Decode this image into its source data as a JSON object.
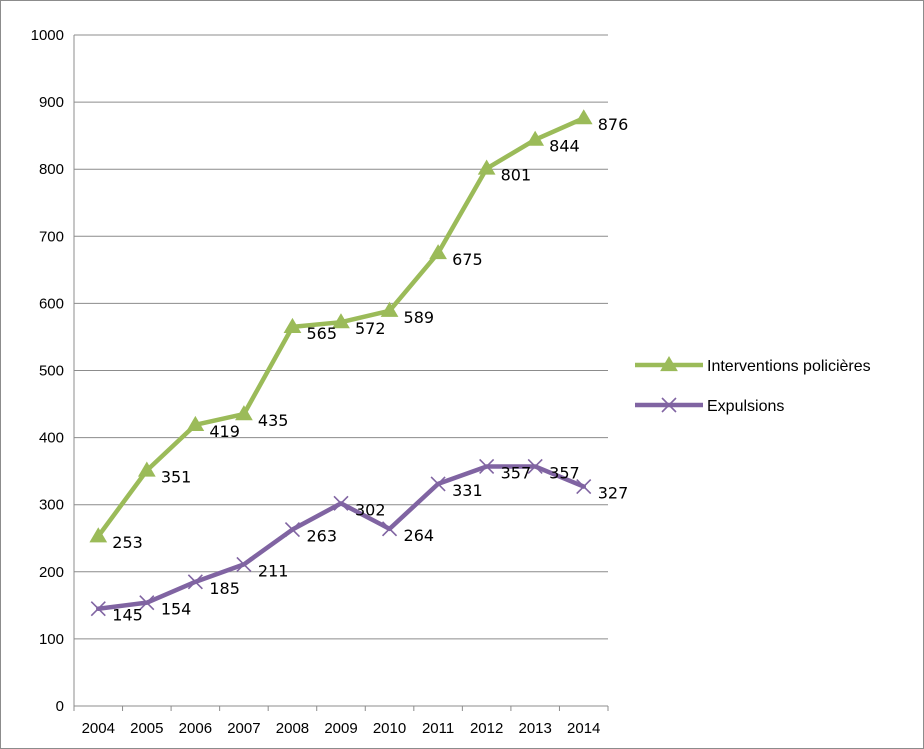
{
  "chart_data": {
    "type": "line",
    "title": "",
    "xlabel": "",
    "ylabel": "",
    "categories": [
      "2004",
      "2005",
      "2006",
      "2007",
      "2008",
      "2009",
      "2010",
      "2011",
      "2012",
      "2013",
      "2014"
    ],
    "ylim": [
      0,
      1000
    ],
    "yticks": [
      0,
      100,
      200,
      300,
      400,
      500,
      600,
      700,
      800,
      900,
      1000
    ],
    "grid": true,
    "legend_position": "right",
    "series": [
      {
        "name": "Interventions policières",
        "values": [
          253,
          351,
          419,
          435,
          565,
          572,
          589,
          675,
          801,
          844,
          876
        ],
        "color": "#9bbb59",
        "marker": "triangle"
      },
      {
        "name": "Expulsions",
        "values": [
          145,
          154,
          185,
          211,
          263,
          302,
          264,
          331,
          357,
          357,
          327
        ],
        "color": "#8064a2",
        "marker": "x"
      }
    ]
  }
}
